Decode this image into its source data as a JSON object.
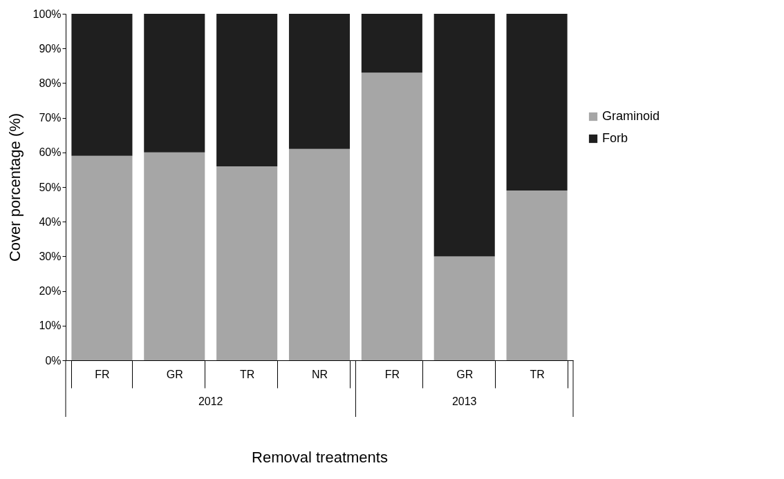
{
  "chart_data": {
    "type": "bar",
    "stacked": true,
    "xlabel": "Removal treatments",
    "ylabel": "Cover porcentage (%)",
    "categories": [
      "FR",
      "GR",
      "TR",
      "NR",
      "FR",
      "GR",
      "TR"
    ],
    "series": [
      {
        "name": "Graminoid",
        "color": "#a6a6a6",
        "values": [
          59,
          60,
          56,
          61,
          83,
          30,
          49
        ]
      },
      {
        "name": "Forb",
        "color": "#1f1f1f",
        "values": [
          41,
          40,
          44,
          39,
          17,
          70,
          51
        ]
      }
    ],
    "ylim": [
      0,
      100
    ],
    "yticks": [
      {
        "value": 0,
        "label": "0%"
      },
      {
        "value": 10,
        "label": "10%"
      },
      {
        "value": 20,
        "label": "20%"
      },
      {
        "value": 30,
        "label": "30%"
      },
      {
        "value": 40,
        "label": "40%"
      },
      {
        "value": 50,
        "label": "50%"
      },
      {
        "value": 60,
        "label": "60%"
      },
      {
        "value": 70,
        "label": "70%"
      },
      {
        "value": 80,
        "label": "80%"
      },
      {
        "value": 90,
        "label": "90%"
      },
      {
        "value": 100,
        "label": "100%"
      }
    ],
    "annotations": [
      "2012",
      "2013"
    ],
    "legend": "right",
    "grid": false
  }
}
